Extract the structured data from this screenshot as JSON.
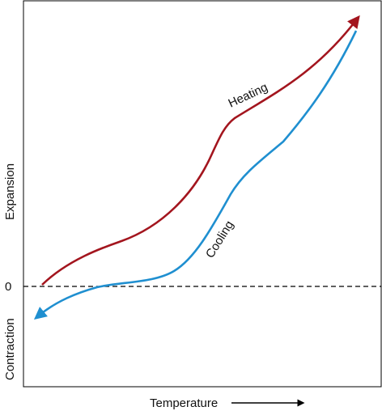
{
  "labels": {
    "y_upper": "Expansion",
    "y_lower": "Contraction",
    "x_axis": "Temperature",
    "zero": "0"
  },
  "curves": {
    "heating": {
      "label": "Heating",
      "color": "#a3151e"
    },
    "cooling": {
      "label": "Cooling",
      "color": "#1f8fd0"
    }
  },
  "colors": {
    "frame": "#000000",
    "zero_line": "#000000"
  }
}
